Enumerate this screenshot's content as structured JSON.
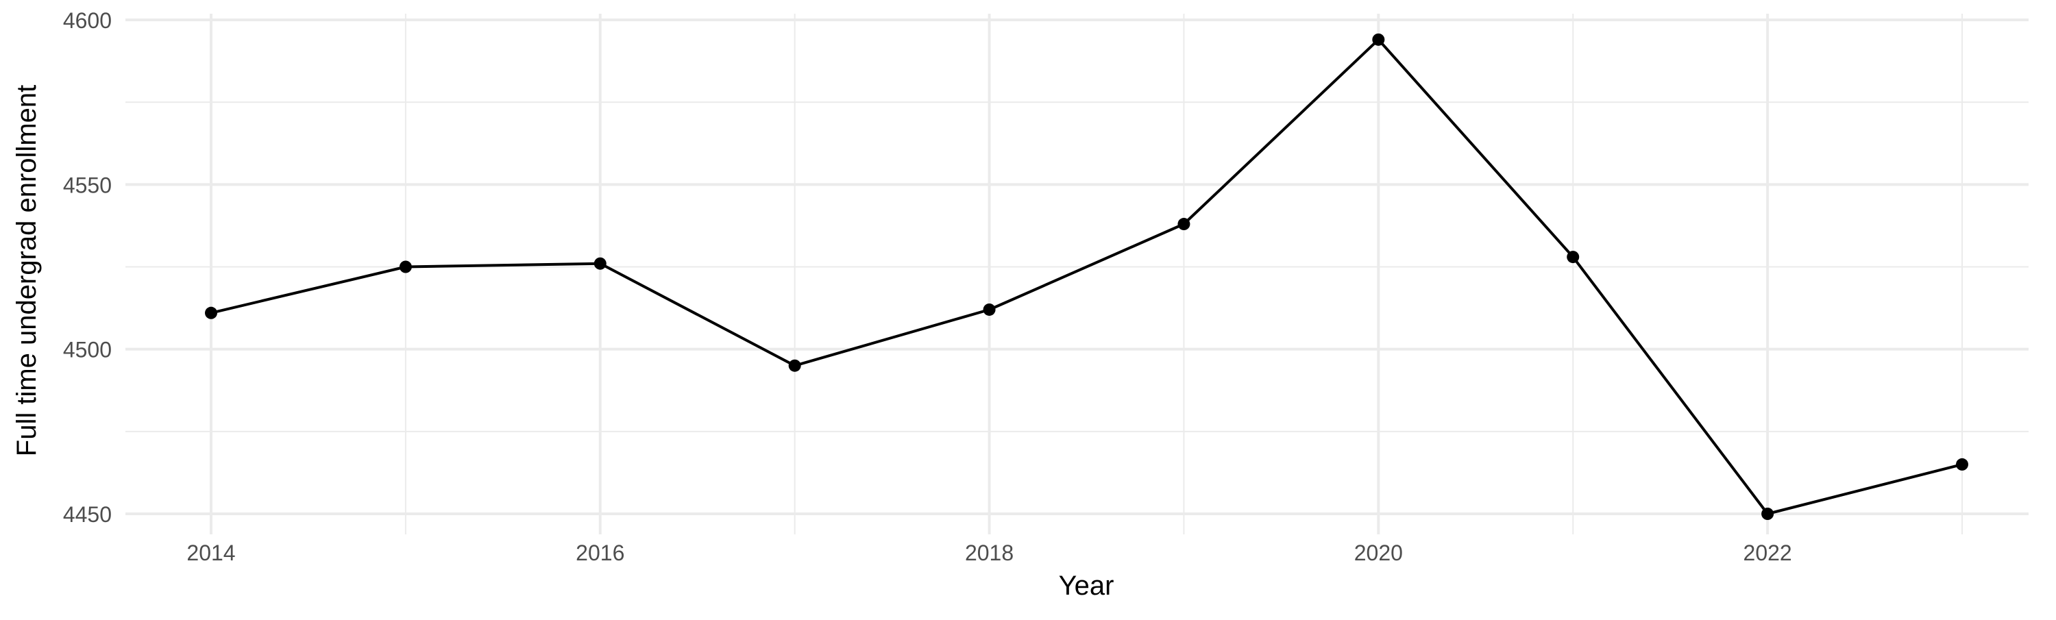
{
  "chart_data": {
    "type": "line",
    "title": "",
    "xlabel": "Year",
    "ylabel": "Full time undergrad enrollment",
    "x": [
      2014,
      2015,
      2016,
      2017,
      2018,
      2019,
      2020,
      2021,
      2022,
      2023
    ],
    "series": [
      {
        "values": [
          4511,
          4525,
          4526,
          4495,
          4512,
          4538,
          4594,
          4528,
          4450,
          4465
        ]
      }
    ],
    "xticks": [
      2014,
      2016,
      2018,
      2020,
      2022
    ],
    "yticks": [
      4450,
      4500,
      4550,
      4600
    ],
    "xlim": [
      2013.6,
      2023.35
    ],
    "ylim": [
      4443,
      4600
    ],
    "grid": true,
    "colors": {
      "line": "#000000",
      "grid": "#ebebeb",
      "tick_text": "#4d4d4d"
    }
  }
}
